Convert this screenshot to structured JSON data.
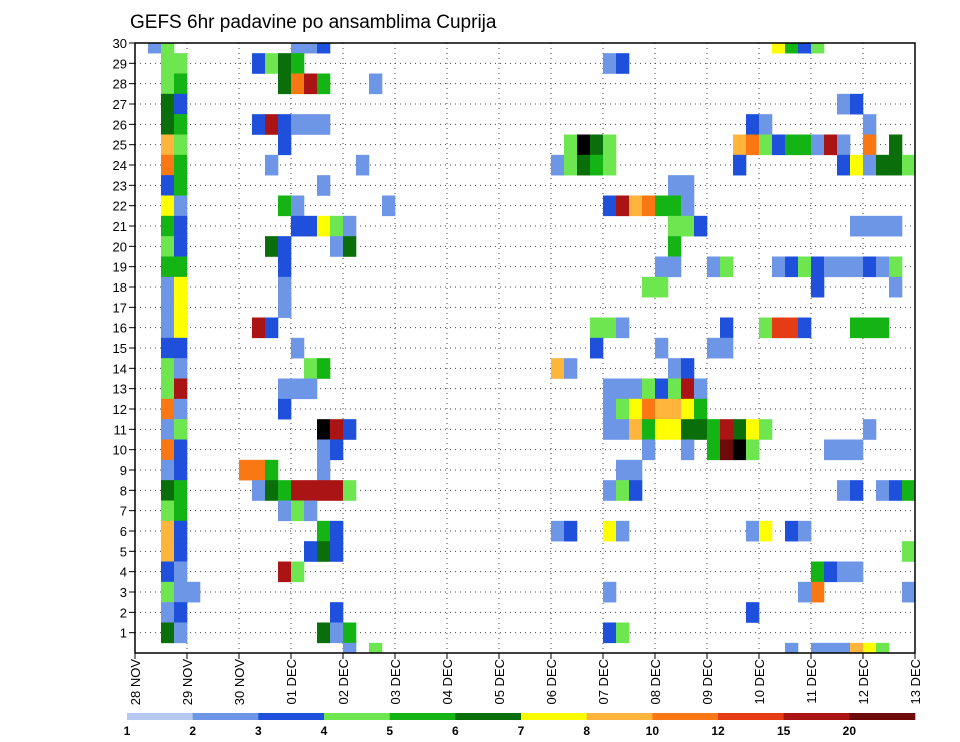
{
  "chart_data": {
    "type": "heatmap",
    "title": "GEFS 6hr padavine po ansamblima Cuprija",
    "x_tick_labels": [
      "28 NOV",
      "29 NOV",
      "30 NOV",
      "01 DEC",
      "02 DEC",
      "03 DEC",
      "04 DEC",
      "05 DEC",
      "06 DEC",
      "07 DEC",
      "08 DEC",
      "09 DEC",
      "10 DEC",
      "11 DEC",
      "12 DEC",
      "13 DEC"
    ],
    "y_tick_labels": [
      "1",
      "2",
      "3",
      "4",
      "5",
      "6",
      "7",
      "8",
      "9",
      "10",
      "11",
      "12",
      "13",
      "14",
      "15",
      "16",
      "17",
      "18",
      "19",
      "20",
      "21",
      "22",
      "23",
      "24",
      "25",
      "26",
      "27",
      "28",
      "29",
      "30"
    ],
    "time_steps_per_day": 4,
    "legend": {
      "labels": [
        "1",
        "2",
        "3",
        "4",
        "5",
        "6",
        "7",
        "8",
        "10",
        "12",
        "15",
        "20"
      ],
      "colors": [
        "#b4c8f0",
        "#6e96e6",
        "#1e50dc",
        "#6ee650",
        "#14b414",
        "#0a6e0a",
        "#ffff00",
        "#ffb43c",
        "#fa7814",
        "#e63c14",
        "#aa1414",
        "#6e0a0a"
      ]
    },
    "cells": [
      [
        30,
        1,
        1
      ],
      [
        30,
        2,
        3
      ],
      [
        30,
        12,
        1
      ],
      [
        30,
        13,
        1
      ],
      [
        30,
        14,
        2
      ],
      [
        30,
        49,
        6
      ],
      [
        30,
        50,
        4
      ],
      [
        30,
        51,
        2
      ],
      [
        30,
        52,
        3
      ],
      [
        29,
        2,
        3
      ],
      [
        29,
        3,
        3
      ],
      [
        29,
        9,
        2
      ],
      [
        29,
        10,
        3
      ],
      [
        29,
        11,
        5
      ],
      [
        29,
        12,
        4
      ],
      [
        29,
        36,
        1
      ],
      [
        29,
        37,
        2
      ],
      [
        28,
        2,
        3
      ],
      [
        28,
        3,
        4
      ],
      [
        28,
        11,
        5
      ],
      [
        28,
        12,
        8
      ],
      [
        28,
        13,
        10
      ],
      [
        28,
        14,
        4
      ],
      [
        28,
        18,
        1
      ],
      [
        27,
        2,
        5
      ],
      [
        27,
        3,
        2
      ],
      [
        27,
        54,
        1
      ],
      [
        27,
        55,
        2
      ],
      [
        26,
        2,
        5
      ],
      [
        26,
        3,
        4
      ],
      [
        26,
        9,
        2
      ],
      [
        26,
        10,
        10
      ],
      [
        26,
        11,
        2
      ],
      [
        26,
        12,
        1
      ],
      [
        26,
        13,
        1
      ],
      [
        26,
        14,
        1
      ],
      [
        26,
        47,
        2
      ],
      [
        26,
        48,
        1
      ],
      [
        26,
        56,
        1
      ],
      [
        25,
        2,
        7
      ],
      [
        25,
        3,
        3
      ],
      [
        25,
        11,
        2
      ],
      [
        25,
        33,
        3
      ],
      [
        25,
        34,
        12
      ],
      [
        25,
        35,
        5
      ],
      [
        25,
        36,
        3
      ],
      [
        25,
        46,
        7
      ],
      [
        25,
        47,
        8
      ],
      [
        25,
        48,
        3
      ],
      [
        25,
        49,
        2
      ],
      [
        25,
        50,
        4
      ],
      [
        25,
        51,
        4
      ],
      [
        25,
        52,
        1
      ],
      [
        25,
        53,
        10
      ],
      [
        25,
        54,
        1
      ],
      [
        25,
        56,
        8
      ],
      [
        25,
        58,
        5
      ],
      [
        24,
        2,
        8
      ],
      [
        24,
        3,
        4
      ],
      [
        24,
        10,
        1
      ],
      [
        24,
        17,
        1
      ],
      [
        24,
        32,
        1
      ],
      [
        24,
        33,
        3
      ],
      [
        24,
        34,
        5
      ],
      [
        24,
        35,
        4
      ],
      [
        24,
        36,
        3
      ],
      [
        24,
        46,
        2
      ],
      [
        24,
        54,
        2
      ],
      [
        24,
        55,
        6
      ],
      [
        24,
        56,
        1
      ],
      [
        24,
        57,
        5
      ],
      [
        24,
        58,
        5
      ],
      [
        24,
        59,
        3
      ],
      [
        23,
        2,
        2
      ],
      [
        23,
        3,
        4
      ],
      [
        23,
        14,
        1
      ],
      [
        23,
        41,
        1
      ],
      [
        23,
        42,
        1
      ],
      [
        22,
        2,
        6
      ],
      [
        22,
        3,
        1
      ],
      [
        22,
        11,
        4
      ],
      [
        22,
        12,
        1
      ],
      [
        22,
        19,
        1
      ],
      [
        22,
        36,
        2
      ],
      [
        22,
        37,
        10
      ],
      [
        22,
        38,
        7
      ],
      [
        22,
        39,
        8
      ],
      [
        22,
        40,
        4
      ],
      [
        22,
        41,
        4
      ],
      [
        22,
        42,
        1
      ],
      [
        21,
        2,
        4
      ],
      [
        21,
        3,
        2
      ],
      [
        21,
        12,
        2
      ],
      [
        21,
        13,
        2
      ],
      [
        21,
        14,
        6
      ],
      [
        21,
        15,
        3
      ],
      [
        21,
        16,
        1
      ],
      [
        21,
        41,
        3
      ],
      [
        21,
        42,
        3
      ],
      [
        21,
        43,
        2
      ],
      [
        21,
        55,
        1
      ],
      [
        21,
        56,
        1
      ],
      [
        21,
        57,
        1
      ],
      [
        21,
        58,
        1
      ],
      [
        20,
        2,
        3
      ],
      [
        20,
        3,
        2
      ],
      [
        20,
        10,
        5
      ],
      [
        20,
        11,
        2
      ],
      [
        20,
        15,
        1
      ],
      [
        20,
        16,
        5
      ],
      [
        20,
        41,
        4
      ],
      [
        19,
        2,
        4
      ],
      [
        19,
        3,
        4
      ],
      [
        19,
        11,
        2
      ],
      [
        19,
        40,
        1
      ],
      [
        19,
        41,
        1
      ],
      [
        19,
        44,
        1
      ],
      [
        19,
        45,
        3
      ],
      [
        19,
        49,
        1
      ],
      [
        19,
        50,
        2
      ],
      [
        19,
        51,
        3
      ],
      [
        19,
        52,
        2
      ],
      [
        19,
        53,
        1
      ],
      [
        19,
        54,
        1
      ],
      [
        19,
        55,
        1
      ],
      [
        19,
        56,
        2
      ],
      [
        19,
        57,
        1
      ],
      [
        19,
        58,
        3
      ],
      [
        18,
        2,
        1
      ],
      [
        18,
        3,
        6
      ],
      [
        18,
        11,
        1
      ],
      [
        18,
        39,
        3
      ],
      [
        18,
        40,
        3
      ],
      [
        18,
        52,
        2
      ],
      [
        18,
        58,
        1
      ],
      [
        17,
        2,
        1
      ],
      [
        17,
        3,
        6
      ],
      [
        17,
        11,
        1
      ],
      [
        17,
        11,
        1
      ],
      [
        16,
        2,
        1
      ],
      [
        16,
        3,
        6
      ],
      [
        16,
        9,
        10
      ],
      [
        16,
        10,
        2
      ],
      [
        16,
        35,
        3
      ],
      [
        16,
        36,
        3
      ],
      [
        16,
        37,
        1
      ],
      [
        16,
        45,
        2
      ],
      [
        16,
        48,
        3
      ],
      [
        16,
        49,
        9
      ],
      [
        16,
        50,
        9
      ],
      [
        16,
        51,
        2
      ],
      [
        16,
        55,
        4
      ],
      [
        16,
        56,
        4
      ],
      [
        16,
        57,
        4
      ],
      [
        15,
        2,
        2
      ],
      [
        15,
        3,
        2
      ],
      [
        15,
        12,
        1
      ],
      [
        15,
        35,
        2
      ],
      [
        15,
        40,
        1
      ],
      [
        15,
        44,
        1
      ],
      [
        15,
        45,
        1
      ],
      [
        14,
        2,
        3
      ],
      [
        14,
        3,
        1
      ],
      [
        14,
        13,
        3
      ],
      [
        14,
        14,
        4
      ],
      [
        14,
        32,
        7
      ],
      [
        14,
        33,
        1
      ],
      [
        14,
        41,
        1
      ],
      [
        14,
        42,
        2
      ],
      [
        13,
        2,
        3
      ],
      [
        13,
        3,
        10
      ],
      [
        13,
        11,
        1
      ],
      [
        13,
        12,
        1
      ],
      [
        13,
        13,
        1
      ],
      [
        13,
        36,
        1
      ],
      [
        13,
        37,
        1
      ],
      [
        13,
        38,
        1
      ],
      [
        13,
        39,
        3
      ],
      [
        13,
        40,
        2
      ],
      [
        13,
        41,
        3
      ],
      [
        13,
        42,
        10
      ],
      [
        13,
        43,
        1
      ],
      [
        12,
        2,
        8
      ],
      [
        12,
        3,
        1
      ],
      [
        12,
        11,
        2
      ],
      [
        12,
        36,
        1
      ],
      [
        12,
        37,
        3
      ],
      [
        12,
        38,
        6
      ],
      [
        12,
        39,
        8
      ],
      [
        12,
        40,
        7
      ],
      [
        12,
        41,
        7
      ],
      [
        12,
        42,
        6
      ],
      [
        12,
        43,
        4
      ],
      [
        11,
        2,
        1
      ],
      [
        11,
        3,
        3
      ],
      [
        11,
        14,
        12
      ],
      [
        11,
        15,
        10
      ],
      [
        11,
        16,
        2
      ],
      [
        11,
        36,
        1
      ],
      [
        11,
        37,
        1
      ],
      [
        11,
        38,
        7
      ],
      [
        11,
        39,
        4
      ],
      [
        11,
        40,
        6
      ],
      [
        11,
        41,
        6
      ],
      [
        11,
        42,
        5
      ],
      [
        11,
        43,
        5
      ],
      [
        11,
        44,
        4
      ],
      [
        11,
        45,
        10
      ],
      [
        11,
        46,
        5
      ],
      [
        11,
        47,
        6
      ],
      [
        11,
        48,
        3
      ],
      [
        11,
        56,
        1
      ],
      [
        10,
        2,
        8
      ],
      [
        10,
        3,
        2
      ],
      [
        10,
        14,
        1
      ],
      [
        10,
        15,
        2
      ],
      [
        10,
        39,
        1
      ],
      [
        10,
        42,
        1
      ],
      [
        10,
        44,
        4
      ],
      [
        10,
        45,
        11
      ],
      [
        10,
        46,
        12
      ],
      [
        10,
        47,
        3
      ],
      [
        10,
        53,
        1
      ],
      [
        10,
        54,
        1
      ],
      [
        10,
        55,
        1
      ],
      [
        9,
        2,
        1
      ],
      [
        9,
        3,
        2
      ],
      [
        9,
        8,
        8
      ],
      [
        9,
        9,
        8
      ],
      [
        9,
        10,
        4
      ],
      [
        9,
        14,
        1
      ],
      [
        9,
        37,
        1
      ],
      [
        9,
        38,
        1
      ],
      [
        8,
        2,
        5
      ],
      [
        8,
        3,
        4
      ],
      [
        8,
        9,
        1
      ],
      [
        8,
        10,
        5
      ],
      [
        8,
        11,
        4
      ],
      [
        8,
        12,
        10
      ],
      [
        8,
        13,
        10
      ],
      [
        8,
        14,
        10
      ],
      [
        8,
        15,
        10
      ],
      [
        8,
        16,
        3
      ],
      [
        8,
        36,
        1
      ],
      [
        8,
        37,
        3
      ],
      [
        8,
        38,
        2
      ],
      [
        8,
        54,
        1
      ],
      [
        8,
        55,
        2
      ],
      [
        8,
        57,
        1
      ],
      [
        8,
        58,
        2
      ],
      [
        8,
        59,
        4
      ],
      [
        7,
        2,
        3
      ],
      [
        7,
        3,
        4
      ],
      [
        7,
        11,
        1
      ],
      [
        7,
        12,
        3
      ],
      [
        7,
        13,
        1
      ],
      [
        6,
        2,
        7
      ],
      [
        6,
        3,
        2
      ],
      [
        6,
        14,
        4
      ],
      [
        6,
        15,
        2
      ],
      [
        6,
        32,
        1
      ],
      [
        6,
        33,
        2
      ],
      [
        6,
        36,
        6
      ],
      [
        6,
        37,
        1
      ],
      [
        6,
        47,
        1
      ],
      [
        6,
        48,
        6
      ],
      [
        6,
        50,
        2
      ],
      [
        6,
        51,
        1
      ],
      [
        5,
        2,
        7
      ],
      [
        5,
        3,
        2
      ],
      [
        5,
        13,
        2
      ],
      [
        5,
        14,
        5
      ],
      [
        5,
        15,
        2
      ],
      [
        5,
        59,
        3
      ],
      [
        4,
        2,
        2
      ],
      [
        4,
        3,
        1
      ],
      [
        4,
        11,
        10
      ],
      [
        4,
        12,
        3
      ],
      [
        4,
        52,
        4
      ],
      [
        4,
        53,
        2
      ],
      [
        4,
        54,
        1
      ],
      [
        4,
        55,
        1
      ],
      [
        3,
        2,
        3
      ],
      [
        3,
        3,
        1
      ],
      [
        3,
        4,
        1
      ],
      [
        3,
        36,
        1
      ],
      [
        3,
        51,
        1
      ],
      [
        3,
        52,
        8
      ],
      [
        3,
        59,
        1
      ],
      [
        2,
        2,
        1
      ],
      [
        2,
        3,
        2
      ],
      [
        2,
        15,
        2
      ],
      [
        2,
        47,
        2
      ],
      [
        1,
        2,
        5
      ],
      [
        1,
        3,
        1
      ],
      [
        1,
        14,
        5
      ],
      [
        1,
        15,
        1
      ],
      [
        1,
        16,
        4
      ],
      [
        1,
        36,
        2
      ],
      [
        1,
        37,
        3
      ],
      [
        0,
        16,
        1
      ],
      [
        0,
        18,
        3
      ],
      [
        0,
        50,
        1
      ],
      [
        0,
        52,
        1
      ],
      [
        0,
        53,
        1
      ],
      [
        0,
        54,
        1
      ],
      [
        0,
        55,
        7
      ],
      [
        0,
        56,
        6
      ],
      [
        0,
        57,
        3
      ]
    ]
  }
}
